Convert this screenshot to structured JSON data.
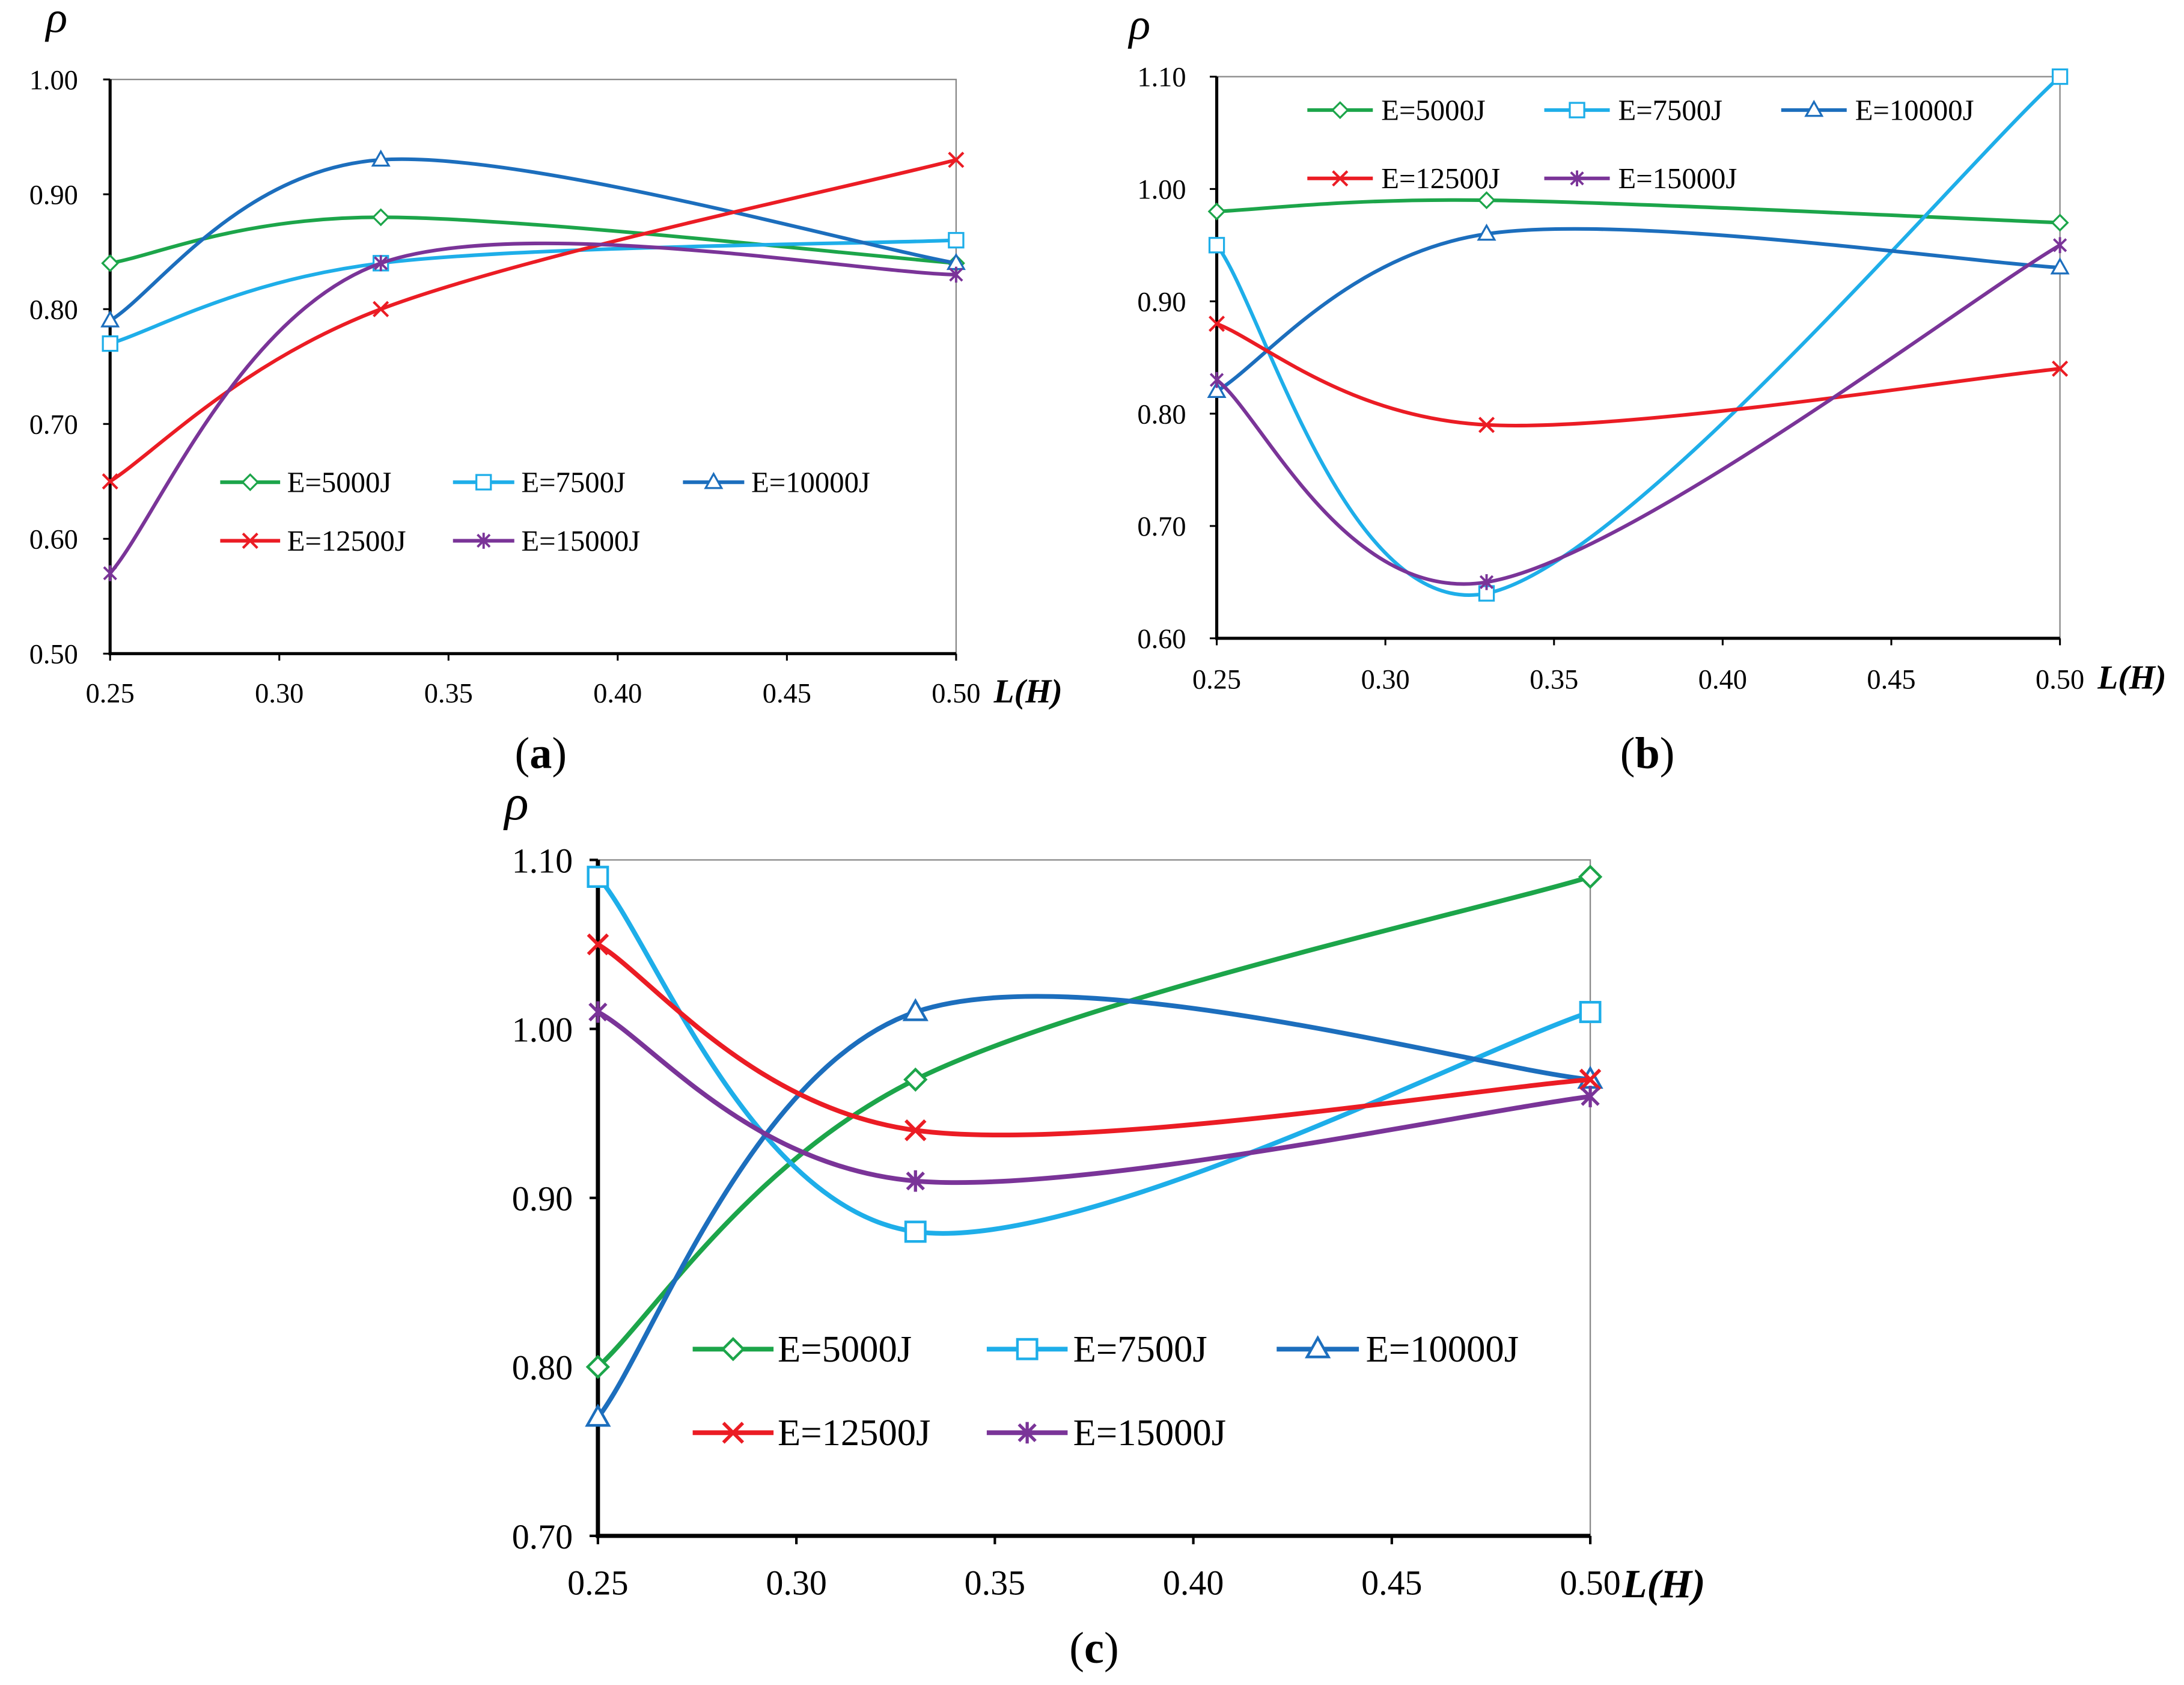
{
  "chart_data": [
    {
      "panel_label": "(a)",
      "type": "line",
      "smooth": true,
      "ylabel": "ρ",
      "xlabel": "L(H)",
      "x": [
        0.25,
        0.33,
        0.5
      ],
      "xlim": [
        0.25,
        0.5
      ],
      "ylim": [
        0.5,
        1.0
      ],
      "xticks": [
        "0.25",
        "0.30",
        "0.35",
        "0.40",
        "0.45",
        "0.50"
      ],
      "yticks": [
        "0.50",
        "0.60",
        "0.70",
        "0.80",
        "0.90",
        "1.00"
      ],
      "grid": false,
      "legend": "lower-left",
      "series": [
        {
          "name": "E=5000J",
          "marker": "diamond",
          "color": "#1ca54a",
          "values": [
            0.84,
            0.88,
            0.84
          ]
        },
        {
          "name": "E=7500J",
          "marker": "square",
          "color": "#1eaee9",
          "values": [
            0.77,
            0.84,
            0.86
          ]
        },
        {
          "name": "E=10000J",
          "marker": "triangle",
          "color": "#1c6ebd",
          "values": [
            0.79,
            0.93,
            0.84
          ]
        },
        {
          "name": "E=12500J",
          "marker": "x",
          "color": "#eb1c24",
          "values": [
            0.65,
            0.8,
            0.93
          ]
        },
        {
          "name": "E=15000J",
          "marker": "star",
          "color": "#7a3498",
          "values": [
            0.57,
            0.84,
            0.83
          ]
        }
      ]
    },
    {
      "panel_label": "(b)",
      "type": "line",
      "smooth": true,
      "ylabel": "ρ",
      "xlabel": "L(H)",
      "x": [
        0.25,
        0.33,
        0.5
      ],
      "xlim": [
        0.25,
        0.5
      ],
      "ylim": [
        0.6,
        1.1
      ],
      "xticks": [
        "0.25",
        "0.30",
        "0.35",
        "0.40",
        "0.45",
        "0.50"
      ],
      "yticks": [
        "0.60",
        "0.70",
        "0.80",
        "0.90",
        "1.00",
        "1.10"
      ],
      "grid": false,
      "legend": "top",
      "series": [
        {
          "name": "E=5000J",
          "marker": "diamond",
          "color": "#1ca54a",
          "values": [
            0.98,
            0.99,
            0.97
          ]
        },
        {
          "name": "E=7500J",
          "marker": "square",
          "color": "#1eaee9",
          "values": [
            0.95,
            0.64,
            1.1
          ]
        },
        {
          "name": "E=10000J",
          "marker": "triangle",
          "color": "#1c6ebd",
          "values": [
            0.82,
            0.96,
            0.93
          ]
        },
        {
          "name": "E=12500J",
          "marker": "x",
          "color": "#eb1c24",
          "values": [
            0.88,
            0.79,
            0.84
          ]
        },
        {
          "name": "E=15000J",
          "marker": "star",
          "color": "#7a3498",
          "values": [
            0.83,
            0.65,
            0.95
          ]
        }
      ]
    },
    {
      "panel_label": "(c)",
      "type": "line",
      "smooth": true,
      "ylabel": "ρ",
      "xlabel": "L(H)",
      "x": [
        0.25,
        0.33,
        0.5
      ],
      "xlim": [
        0.25,
        0.5
      ],
      "ylim": [
        0.7,
        1.1
      ],
      "xticks": [
        "0.25",
        "0.30",
        "0.35",
        "0.40",
        "0.45",
        "0.50"
      ],
      "yticks": [
        "0.70",
        "0.80",
        "0.90",
        "1.00",
        "1.10"
      ],
      "grid": false,
      "legend": "lower-left",
      "series": [
        {
          "name": "E=5000J",
          "marker": "diamond",
          "color": "#1ca54a",
          "values": [
            0.8,
            0.97,
            1.09
          ]
        },
        {
          "name": "E=7500J",
          "marker": "square",
          "color": "#1eaee9",
          "values": [
            1.09,
            0.88,
            1.01
          ]
        },
        {
          "name": "E=10000J",
          "marker": "triangle",
          "color": "#1c6ebd",
          "values": [
            0.77,
            1.01,
            0.97
          ]
        },
        {
          "name": "E=12500J",
          "marker": "x",
          "color": "#eb1c24",
          "values": [
            1.05,
            0.94,
            0.97
          ]
        },
        {
          "name": "E=15000J",
          "marker": "star",
          "color": "#7a3498",
          "values": [
            1.01,
            0.91,
            0.96
          ]
        }
      ]
    }
  ]
}
